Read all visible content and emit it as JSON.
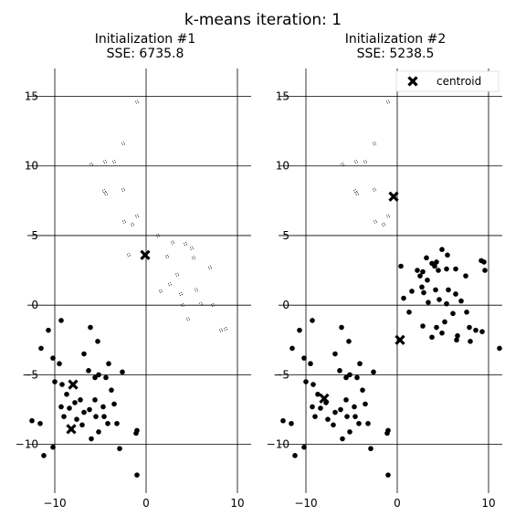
{
  "figure": {
    "title": "k-means iteration: 1"
  },
  "chart_data": [
    {
      "type": "scatter",
      "title": "Initialization #1",
      "subtitle": "SSE: 6735.8",
      "xlim": [
        -13,
        11.5
      ],
      "ylim": [
        -13.5,
        17
      ],
      "xticks": [
        -10,
        0,
        10
      ],
      "yticks": [
        -10,
        -5,
        0,
        5,
        10,
        15
      ],
      "grid": true,
      "legend": null,
      "series": [
        {
          "name": "cluster-a",
          "style": "points",
          "points": [
            [
              -12.5,
              -8.3
            ],
            [
              -11.6,
              -8.5
            ],
            [
              -11.2,
              -10.8
            ],
            [
              -10.2,
              -10.2
            ],
            [
              -11.5,
              -3.1
            ],
            [
              -10.7,
              -1.8
            ],
            [
              -9.3,
              -1.1
            ],
            [
              -10.2,
              -3.8
            ],
            [
              -9.5,
              -4.2
            ],
            [
              -10.0,
              -5.5
            ],
            [
              -9.2,
              -5.7
            ],
            [
              -8.7,
              -6.4
            ],
            [
              -9.3,
              -7.3
            ],
            [
              -8.4,
              -7.4
            ],
            [
              -9.0,
              -8.0
            ],
            [
              -7.8,
              -7.0
            ],
            [
              -7.6,
              -8.2
            ],
            [
              -7.0,
              -8.6
            ],
            [
              -6.8,
              -7.7
            ],
            [
              -6.2,
              -7.5
            ],
            [
              -5.6,
              -6.8
            ],
            [
              -5.5,
              -8.0
            ],
            [
              -4.7,
              -7.3
            ],
            [
              -4.6,
              -8.0
            ],
            [
              -4.2,
              -8.5
            ],
            [
              -5.2,
              -9.1
            ],
            [
              -6.0,
              -9.6
            ],
            [
              -5.6,
              -5.2
            ],
            [
              -6.3,
              -4.7
            ],
            [
              -5.2,
              -5.0
            ],
            [
              -4.4,
              -5.2
            ],
            [
              -6.8,
              -3.5
            ],
            [
              -6.1,
              -1.6
            ],
            [
              -5.3,
              -2.6
            ],
            [
              -4.1,
              -4.2
            ],
            [
              -2.6,
              -4.8
            ],
            [
              -3.8,
              -6.1
            ],
            [
              -3.5,
              -7.1
            ],
            [
              -3.2,
              -8.5
            ],
            [
              -2.9,
              -10.3
            ],
            [
              -1.0,
              -9.0
            ],
            [
              -1.1,
              -9.2
            ],
            [
              -1.0,
              -12.2
            ],
            [
              -7.2,
              -6.8
            ]
          ]
        },
        {
          "name": "cluster-b",
          "style": "faint",
          "points": [
            [
              -2.5,
              11.6
            ],
            [
              -4.5,
              10.3
            ],
            [
              -6.0,
              10.1
            ],
            [
              -3.5,
              10.3
            ],
            [
              -4.6,
              8.2
            ],
            [
              -4.4,
              8.0
            ],
            [
              -2.5,
              8.3
            ],
            [
              -2.4,
              6.0
            ],
            [
              -1.5,
              5.8
            ],
            [
              1.3,
              5.0
            ],
            [
              2.9,
              4.5
            ],
            [
              4.3,
              4.4
            ],
            [
              5.0,
              4.1
            ],
            [
              2.3,
              3.5
            ],
            [
              3.4,
              2.2
            ],
            [
              2.6,
              1.5
            ],
            [
              1.6,
              1.0
            ],
            [
              5.2,
              3.4
            ],
            [
              7.0,
              2.7
            ],
            [
              3.8,
              0.8
            ],
            [
              5.5,
              1.1
            ],
            [
              7.3,
              0.0
            ],
            [
              4.0,
              0.0
            ],
            [
              6.0,
              0.1
            ],
            [
              4.6,
              -1.0
            ],
            [
              8.7,
              -1.7
            ],
            [
              8.2,
              -1.8
            ],
            [
              -1.0,
              14.6
            ],
            [
              -1.0,
              6.4
            ],
            [
              -1.9,
              3.6
            ]
          ]
        }
      ],
      "centroids": [
        [
          -8.0,
          -5.7
        ],
        [
          -8.2,
          -8.9
        ],
        [
          -0.1,
          3.6
        ]
      ]
    },
    {
      "type": "scatter",
      "title": "Initialization #2",
      "subtitle": "SSE: 5238.5",
      "xlim": [
        -13,
        11.5
      ],
      "ylim": [
        -13.5,
        17
      ],
      "xticks": [
        -10,
        0,
        10
      ],
      "yticks": [
        -10,
        -5,
        0,
        5,
        10,
        15
      ],
      "grid": true,
      "legend": {
        "label": "centroid",
        "placement": "upper right"
      },
      "series": [
        {
          "name": "cluster-a",
          "style": "points",
          "points": [
            [
              -12.5,
              -8.3
            ],
            [
              -11.6,
              -8.5
            ],
            [
              -11.2,
              -10.8
            ],
            [
              -10.2,
              -10.2
            ],
            [
              -11.5,
              -3.1
            ],
            [
              -10.7,
              -1.8
            ],
            [
              -9.3,
              -1.1
            ],
            [
              -10.2,
              -3.8
            ],
            [
              -9.5,
              -4.2
            ],
            [
              -10.0,
              -5.5
            ],
            [
              -9.2,
              -5.7
            ],
            [
              -8.7,
              -6.4
            ],
            [
              -9.3,
              -7.3
            ],
            [
              -8.4,
              -7.4
            ],
            [
              -9.0,
              -8.0
            ],
            [
              -7.8,
              -7.0
            ],
            [
              -7.6,
              -8.2
            ],
            [
              -7.0,
              -8.6
            ],
            [
              -6.8,
              -7.7
            ],
            [
              -6.2,
              -7.5
            ],
            [
              -5.6,
              -6.8
            ],
            [
              -5.5,
              -8.0
            ],
            [
              -4.7,
              -7.3
            ],
            [
              -4.6,
              -8.0
            ],
            [
              -4.2,
              -8.5
            ],
            [
              -5.2,
              -9.1
            ],
            [
              -6.0,
              -9.6
            ],
            [
              -5.6,
              -5.2
            ],
            [
              -6.3,
              -4.7
            ],
            [
              -5.2,
              -5.0
            ],
            [
              -4.4,
              -5.2
            ],
            [
              -6.8,
              -3.5
            ],
            [
              -6.1,
              -1.6
            ],
            [
              -5.3,
              -2.6
            ],
            [
              -4.1,
              -4.2
            ],
            [
              -2.6,
              -4.8
            ],
            [
              -3.8,
              -6.1
            ],
            [
              -3.5,
              -7.1
            ],
            [
              -3.2,
              -8.5
            ],
            [
              -2.9,
              -10.3
            ],
            [
              -1.0,
              -9.0
            ],
            [
              -1.1,
              -9.2
            ],
            [
              -1.0,
              -12.2
            ]
          ]
        },
        {
          "name": "cluster-b",
          "style": "points",
          "points": [
            [
              0.4,
              2.8
            ],
            [
              0.7,
              0.5
            ],
            [
              1.6,
              1.0
            ],
            [
              2.2,
              2.5
            ],
            [
              2.5,
              2.1
            ],
            [
              2.8,
              2.4
            ],
            [
              3.3,
              1.8
            ],
            [
              2.7,
              1.3
            ],
            [
              3.8,
              3.0
            ],
            [
              4.1,
              2.8
            ],
            [
              4.5,
              2.5
            ],
            [
              5.4,
              2.6
            ],
            [
              6.4,
              2.6
            ],
            [
              5.5,
              3.6
            ],
            [
              4.9,
              4.0
            ],
            [
              3.2,
              3.4
            ],
            [
              4.3,
              3.1
            ],
            [
              7.5,
              2.1
            ],
            [
              9.5,
              3.1
            ],
            [
              9.2,
              3.2
            ],
            [
              9.6,
              2.5
            ],
            [
              4.2,
              1.1
            ],
            [
              5.6,
              1.1
            ],
            [
              6.4,
              0.8
            ],
            [
              3.4,
              0.2
            ],
            [
              4.6,
              0.4
            ],
            [
              5.4,
              0.1
            ],
            [
              6.1,
              -0.6
            ],
            [
              7.0,
              0.3
            ],
            [
              7.6,
              -0.5
            ],
            [
              5.2,
              -1.2
            ],
            [
              4.3,
              -1.6
            ],
            [
              4.9,
              -2.0
            ],
            [
              2.8,
              -1.5
            ],
            [
              3.8,
              -2.3
            ],
            [
              6.6,
              -2.2
            ],
            [
              6.5,
              -2.5
            ],
            [
              7.9,
              -1.6
            ],
            [
              8.6,
              -1.8
            ],
            [
              8.0,
              -2.6
            ],
            [
              9.3,
              -1.9
            ],
            [
              11.2,
              -3.1
            ],
            [
              1.3,
              -0.5
            ],
            [
              2.9,
              0.9
            ]
          ]
        },
        {
          "name": "cluster-c",
          "style": "faint",
          "points": [
            [
              -2.5,
              11.6
            ],
            [
              -4.5,
              10.3
            ],
            [
              -6.0,
              10.1
            ],
            [
              -3.5,
              10.3
            ],
            [
              -4.6,
              8.2
            ],
            [
              -4.4,
              8.0
            ],
            [
              -2.5,
              8.3
            ],
            [
              -2.4,
              6.0
            ],
            [
              -1.5,
              5.8
            ],
            [
              -1.0,
              14.6
            ],
            [
              -1.0,
              6.4
            ]
          ]
        }
      ],
      "centroids": [
        [
          -8.0,
          -6.7
        ],
        [
          -0.4,
          7.8
        ],
        [
          0.3,
          -2.5
        ]
      ]
    }
  ]
}
